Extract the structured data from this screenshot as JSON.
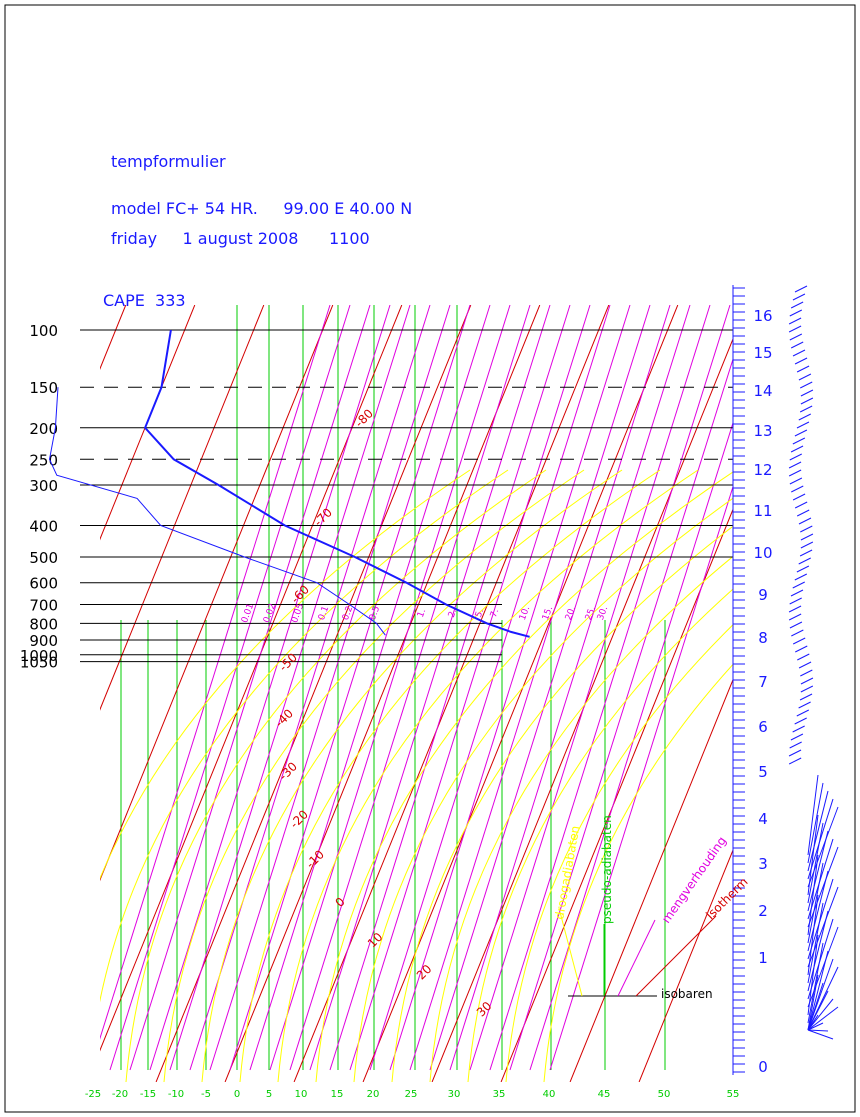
{
  "header": {
    "title": "tempformulier",
    "model_line": "model FC+ 54 HR.     99.00 E 40.00 N",
    "date_line": "friday     1 august 2008      1100",
    "cape_line": "CAPE  333"
  },
  "chart_data": {
    "type": "skew-t",
    "pressure_labels": [
      "100",
      "150",
      "200",
      "250",
      "300",
      "400",
      "500",
      "600",
      "700",
      "800",
      "900",
      "1000",
      "1050"
    ],
    "dashed_pressures": [
      "150",
      "250"
    ],
    "x_tick_labels": [
      "-25",
      "-20",
      "-15",
      "-10",
      "-5",
      "0",
      "5",
      "10",
      "15",
      "20",
      "25",
      "30",
      "35",
      "40",
      "45",
      "50",
      "55"
    ],
    "height_km_labels": [
      "0",
      "1",
      "2",
      "3",
      "4",
      "5",
      "6",
      "7",
      "8",
      "9",
      "10",
      "11",
      "12",
      "13",
      "14",
      "15",
      "16"
    ],
    "isotherm_labels": [
      "-80",
      "-70",
      "-60",
      "-50",
      "-40",
      "-30",
      "-20",
      "-10",
      "0",
      "10",
      "20",
      "30"
    ],
    "mixing_ratio_labels": [
      "0.01",
      "0.02",
      "0.05",
      "0.1",
      "0.2",
      "0.5",
      "1.",
      "2.",
      "5.",
      "7.",
      "10.",
      "15.",
      "20.",
      "25.",
      "30."
    ],
    "legend": {
      "droog": "droogadiabaten",
      "pseudo": "pseudo-adiabaten",
      "meng": "mengverhouding",
      "iso": "isotherm",
      "isobaren": "isobaren"
    },
    "temperature_profile": [
      [
        100,
        -52
      ],
      [
        150,
        -50
      ],
      [
        200,
        -50
      ],
      [
        250,
        -44
      ],
      [
        300,
        -36
      ],
      [
        400,
        -24
      ],
      [
        500,
        -12
      ],
      [
        600,
        -3
      ],
      [
        700,
        4
      ],
      [
        800,
        11
      ],
      [
        850,
        15
      ],
      [
        880,
        18
      ]
    ],
    "dewpoint_profile": [
      [
        150,
        -65
      ],
      [
        200,
        -63
      ],
      [
        250,
        -62
      ],
      [
        280,
        -60
      ],
      [
        330,
        -47
      ],
      [
        400,
        -42
      ],
      [
        500,
        -28
      ],
      [
        600,
        -16
      ],
      [
        700,
        -10
      ],
      [
        800,
        -5
      ],
      [
        870,
        -3
      ]
    ],
    "colors": {
      "frame": "#000000",
      "text": "#1a1aff",
      "profile": "#1a1aff",
      "isotherm": "#d40000",
      "dry_adiabat": "#ffff00",
      "pseudo_adiabat": "#00cc00",
      "mixing_ratio": "#e000e0",
      "isobar": "#000000"
    }
  }
}
